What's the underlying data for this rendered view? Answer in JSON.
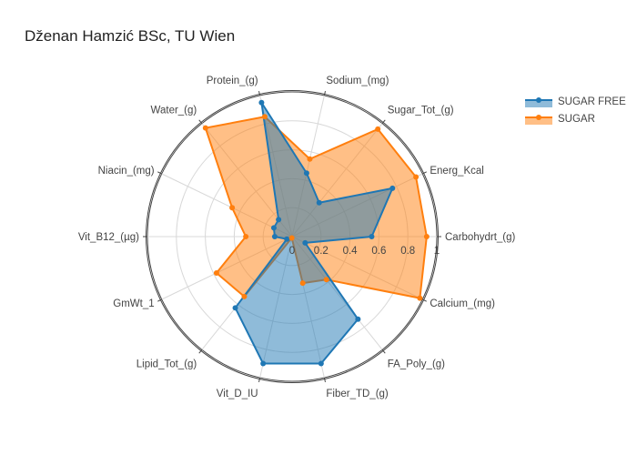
{
  "title": "Dženan Hamzić BSc, TU Wien",
  "chart_data": {
    "type": "radar",
    "radial_range": [
      0,
      1
    ],
    "radial_ticks": [
      "0",
      "0.2",
      "0.4",
      "0.6",
      "0.8",
      "1"
    ],
    "categories": [
      "Carbohydrt_(g)",
      "Energ_Kcal",
      "Sugar_Tot_(g)",
      "Sodium_(mg)",
      "Protein_(g)",
      "Water_(g)",
      "Niacin_(mg)",
      "Vit_B12_(µg)",
      "GmWt_1",
      "Lipid_Tot_(g)",
      "Vit_D_IU",
      "Fiber_TD_(g)",
      "FA_Poly_(g)",
      "Calcium_(mg)"
    ],
    "series": [
      {
        "name": "SUGAR FREE",
        "color": "#1f77b4",
        "fill": "rgba(31,119,180,0.5)",
        "values": [
          0.55,
          0.77,
          0.3,
          0.45,
          0.95,
          0.15,
          0.14,
          0.12,
          0.04,
          0.63,
          0.9,
          0.9,
          0.73,
          0.1
        ]
      },
      {
        "name": "SUGAR",
        "color": "#ff7f0e",
        "fill": "rgba(255,127,14,0.5)",
        "values": [
          0.93,
          0.95,
          0.95,
          0.55,
          0.85,
          0.96,
          0.46,
          0.32,
          0.58,
          0.53,
          0.01,
          0.33,
          0.38,
          0.98
        ]
      }
    ],
    "legend_position": "top-right"
  }
}
